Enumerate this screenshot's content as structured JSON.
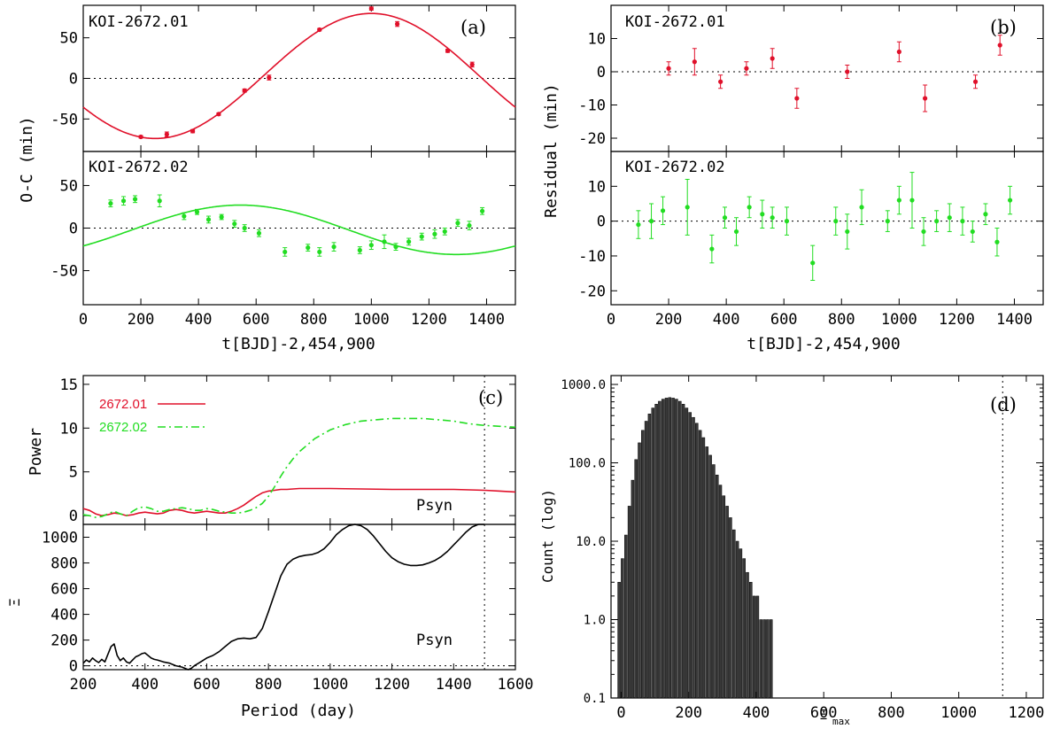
{
  "colors": {
    "red": "#e0102a",
    "green": "#22dd22",
    "black": "#000000"
  },
  "chart_data": [
    {
      "panel": "a",
      "type": "scatter",
      "letter": "(a)",
      "xlabel": "t[BJD]-2,454,900",
      "ylabel": "O-C (min)",
      "xlim": [
        0,
        1500
      ],
      "x_ticks": [
        0,
        200,
        400,
        600,
        800,
        1000,
        1200,
        1400
      ],
      "subpanels": [
        {
          "label": "KOI-2672.01",
          "color": "red",
          "ylim": [
            -90,
            90
          ],
          "y_ticks": [
            -50,
            0,
            50
          ],
          "points": [
            {
              "x": 200,
              "y": -72,
              "err": 1.5
            },
            {
              "x": 290,
              "y": -69,
              "err": 3
            },
            {
              "x": 380,
              "y": -65,
              "err": 2
            },
            {
              "x": 470,
              "y": -44,
              "err": 1.5
            },
            {
              "x": 560,
              "y": -15,
              "err": 2
            },
            {
              "x": 645,
              "y": 1,
              "err": 3
            },
            {
              "x": 820,
              "y": 60,
              "err": 1.5
            },
            {
              "x": 1000,
              "y": 86,
              "err": 2
            },
            {
              "x": 1090,
              "y": 67,
              "err": 3
            },
            {
              "x": 1265,
              "y": 34,
              "err": 2
            },
            {
              "x": 1350,
              "y": 17,
              "err": 3
            }
          ],
          "model": {
            "amplitude": 77,
            "period": 1500,
            "phase_zero_at": 625,
            "offset": 3
          }
        },
        {
          "label": "KOI-2672.02",
          "color": "green",
          "ylim": [
            -90,
            90
          ],
          "y_ticks": [
            -50,
            0,
            50
          ],
          "points": [
            {
              "x": 95,
              "y": 29,
              "err": 4
            },
            {
              "x": 140,
              "y": 32,
              "err": 5
            },
            {
              "x": 180,
              "y": 34,
              "err": 4
            },
            {
              "x": 265,
              "y": 32,
              "err": 7
            },
            {
              "x": 350,
              "y": 14,
              "err": 4
            },
            {
              "x": 395,
              "y": 19,
              "err": 3
            },
            {
              "x": 435,
              "y": 10,
              "err": 4
            },
            {
              "x": 480,
              "y": 13,
              "err": 3
            },
            {
              "x": 525,
              "y": 5,
              "err": 4
            },
            {
              "x": 560,
              "y": 0,
              "err": 4
            },
            {
              "x": 610,
              "y": -6,
              "err": 4
            },
            {
              "x": 700,
              "y": -28,
              "err": 5
            },
            {
              "x": 780,
              "y": -23,
              "err": 4
            },
            {
              "x": 820,
              "y": -28,
              "err": 5
            },
            {
              "x": 870,
              "y": -22,
              "err": 5
            },
            {
              "x": 960,
              "y": -26,
              "err": 4
            },
            {
              "x": 1000,
              "y": -20,
              "err": 5
            },
            {
              "x": 1045,
              "y": -16,
              "err": 8
            },
            {
              "x": 1085,
              "y": -22,
              "err": 4
            },
            {
              "x": 1130,
              "y": -16,
              "err": 4
            },
            {
              "x": 1175,
              "y": -10,
              "err": 4
            },
            {
              "x": 1220,
              "y": -7,
              "err": 5
            },
            {
              "x": 1255,
              "y": -4,
              "err": 4
            },
            {
              "x": 1300,
              "y": 6,
              "err": 4
            },
            {
              "x": 1340,
              "y": 3,
              "err": 5
            },
            {
              "x": 1385,
              "y": 20,
              "err": 4
            }
          ],
          "model": {
            "amplitude": 29,
            "period": 1500,
            "phase_zero_at": 170,
            "offset": -2
          }
        }
      ]
    },
    {
      "panel": "b",
      "type": "scatter",
      "letter": "(b)",
      "xlabel": "t[BJD]-2,454,900",
      "ylabel": "Residual (min)",
      "xlim": [
        0,
        1500
      ],
      "x_ticks": [
        0,
        200,
        400,
        600,
        800,
        1000,
        1200,
        1400
      ],
      "subpanels": [
        {
          "label": "KOI-2672.01",
          "color": "red",
          "ylim": [
            -24,
            20
          ],
          "y_ticks": [
            -20,
            -10,
            0,
            10
          ],
          "points": [
            {
              "x": 200,
              "y": 1,
              "err": 2
            },
            {
              "x": 290,
              "y": 3,
              "err": 4
            },
            {
              "x": 380,
              "y": -3,
              "err": 2
            },
            {
              "x": 470,
              "y": 1,
              "err": 2
            },
            {
              "x": 560,
              "y": 4,
              "err": 3
            },
            {
              "x": 645,
              "y": -8,
              "err": 3
            },
            {
              "x": 820,
              "y": 0,
              "err": 2
            },
            {
              "x": 1000,
              "y": 6,
              "err": 3
            },
            {
              "x": 1090,
              "y": -8,
              "err": 4
            },
            {
              "x": 1265,
              "y": -3,
              "err": 2
            },
            {
              "x": 1350,
              "y": 8,
              "err": 3
            }
          ]
        },
        {
          "label": "KOI-2672.02",
          "color": "green",
          "ylim": [
            -24,
            20
          ],
          "y_ticks": [
            -20,
            -10,
            0,
            10
          ],
          "points": [
            {
              "x": 95,
              "y": -1,
              "err": 4
            },
            {
              "x": 140,
              "y": 0,
              "err": 5
            },
            {
              "x": 180,
              "y": 3,
              "err": 4
            },
            {
              "x": 265,
              "y": 4,
              "err": 8
            },
            {
              "x": 350,
              "y": -8,
              "err": 4
            },
            {
              "x": 395,
              "y": 1,
              "err": 3
            },
            {
              "x": 435,
              "y": -3,
              "err": 4
            },
            {
              "x": 480,
              "y": 4,
              "err": 3
            },
            {
              "x": 525,
              "y": 2,
              "err": 4
            },
            {
              "x": 560,
              "y": 1,
              "err": 3
            },
            {
              "x": 610,
              "y": 0,
              "err": 4
            },
            {
              "x": 700,
              "y": -12,
              "err": 5
            },
            {
              "x": 780,
              "y": 0,
              "err": 4
            },
            {
              "x": 820,
              "y": -3,
              "err": 5
            },
            {
              "x": 870,
              "y": 4,
              "err": 5
            },
            {
              "x": 960,
              "y": 0,
              "err": 3
            },
            {
              "x": 1000,
              "y": 6,
              "err": 4
            },
            {
              "x": 1045,
              "y": 6,
              "err": 8
            },
            {
              "x": 1085,
              "y": -3,
              "err": 4
            },
            {
              "x": 1130,
              "y": 0,
              "err": 3
            },
            {
              "x": 1175,
              "y": 1,
              "err": 4
            },
            {
              "x": 1220,
              "y": 0,
              "err": 4
            },
            {
              "x": 1255,
              "y": -3,
              "err": 3
            },
            {
              "x": 1300,
              "y": 2,
              "err": 3
            },
            {
              "x": 1340,
              "y": -6,
              "err": 4
            },
            {
              "x": 1385,
              "y": 6,
              "err": 4
            }
          ]
        }
      ]
    },
    {
      "panel": "c",
      "type": "line",
      "letter": "(c)",
      "xlabel": "Period (day)",
      "xlim": [
        200,
        1600
      ],
      "x_ticks": [
        200,
        400,
        600,
        800,
        1000,
        1200,
        1400,
        1600
      ],
      "psyn_x": 1500,
      "psyn_label": "Psyn",
      "top": {
        "ylabel": "Power",
        "ylim": [
          -1,
          16
        ],
        "y_ticks": [
          0,
          5,
          10,
          15
        ],
        "legend": [
          {
            "label": "2672.01",
            "color": "red",
            "dash": "solid"
          },
          {
            "label": "2672.02",
            "color": "green",
            "dash": "dashdot"
          }
        ],
        "series": [
          {
            "name": "2672.01",
            "color": "red",
            "dash": "solid",
            "x": [
              200,
              220,
              240,
              260,
              280,
              300,
              320,
              340,
              360,
              380,
              400,
              420,
              440,
              460,
              480,
              500,
              520,
              540,
              560,
              580,
              600,
              620,
              640,
              660,
              680,
              700,
              720,
              740,
              760,
              780,
              800,
              820,
              840,
              860,
              880,
              900,
              950,
              1000,
              1100,
              1200,
              1300,
              1400,
              1450,
              1500,
              1550,
              1600
            ],
            "y": [
              0.8,
              0.6,
              0.2,
              0.0,
              0.1,
              0.3,
              0.2,
              0.0,
              0.1,
              0.3,
              0.4,
              0.3,
              0.2,
              0.3,
              0.6,
              0.7,
              0.6,
              0.4,
              0.3,
              0.4,
              0.5,
              0.4,
              0.3,
              0.3,
              0.5,
              0.8,
              1.2,
              1.7,
              2.2,
              2.6,
              2.8,
              2.9,
              3.0,
              3.0,
              3.05,
              3.1,
              3.1,
              3.1,
              3.05,
              3.0,
              3.0,
              3.0,
              2.95,
              2.9,
              2.8,
              2.7
            ]
          },
          {
            "name": "2672.02",
            "color": "green",
            "dash": "dashdot",
            "x": [
              200,
              220,
              240,
              260,
              280,
              300,
              320,
              340,
              360,
              380,
              400,
              420,
              440,
              460,
              480,
              500,
              520,
              540,
              560,
              580,
              600,
              620,
              640,
              660,
              680,
              700,
              720,
              740,
              760,
              780,
              800,
              820,
              840,
              860,
              880,
              900,
              950,
              1000,
              1050,
              1100,
              1200,
              1300,
              1400,
              1450,
              1500,
              1550,
              1600
            ],
            "y": [
              0.1,
              0.0,
              -0.2,
              -0.1,
              0.2,
              0.5,
              0.2,
              0.0,
              0.5,
              0.9,
              1.0,
              0.8,
              0.5,
              0.5,
              0.7,
              0.8,
              0.9,
              0.8,
              0.6,
              0.6,
              0.8,
              0.7,
              0.5,
              0.4,
              0.3,
              0.3,
              0.4,
              0.6,
              0.9,
              1.4,
              2.2,
              3.3,
              4.5,
              5.6,
              6.5,
              7.3,
              8.8,
              9.8,
              10.4,
              10.8,
              11.1,
              11.1,
              10.8,
              10.5,
              10.3,
              10.2,
              10.1
            ]
          }
        ]
      },
      "bottom": {
        "ylabel": "Ξ",
        "ylim": [
          -30,
          1100
        ],
        "y_ticks": [
          0,
          200,
          400,
          600,
          800,
          1000
        ],
        "series": [
          {
            "name": "Xi",
            "color": "black",
            "dash": "solid",
            "x": [
              200,
              210,
              220,
              230,
              240,
              250,
              260,
              270,
              280,
              290,
              300,
              310,
              320,
              330,
              340,
              350,
              360,
              370,
              380,
              390,
              400,
              410,
              420,
              430,
              440,
              460,
              480,
              500,
              520,
              540,
              550,
              560,
              580,
              600,
              620,
              640,
              660,
              680,
              700,
              720,
              740,
              760,
              780,
              800,
              820,
              840,
              860,
              880,
              900,
              920,
              940,
              960,
              980,
              1000,
              1020,
              1040,
              1060,
              1080,
              1100,
              1120,
              1140,
              1160,
              1180,
              1200,
              1220,
              1240,
              1260,
              1280,
              1300,
              1320,
              1340,
              1360,
              1380,
              1400,
              1420,
              1440,
              1460,
              1480,
              1500
            ],
            "y": [
              20,
              45,
              30,
              60,
              40,
              25,
              50,
              30,
              90,
              150,
              170,
              80,
              40,
              60,
              30,
              20,
              45,
              70,
              80,
              95,
              100,
              80,
              60,
              50,
              45,
              30,
              20,
              0,
              -10,
              -30,
              -20,
              0,
              30,
              60,
              80,
              110,
              150,
              190,
              210,
              215,
              210,
              220,
              290,
              420,
              560,
              700,
              790,
              830,
              850,
              860,
              865,
              880,
              910,
              960,
              1020,
              1060,
              1090,
              1100,
              1090,
              1060,
              1010,
              950,
              890,
              840,
              810,
              790,
              780,
              780,
              785,
              800,
              820,
              850,
              890,
              940,
              990,
              1040,
              1080,
              1100,
              1100
            ]
          }
        ]
      }
    },
    {
      "panel": "d",
      "type": "bar",
      "letter": "(d)",
      "xlabel": "Ξ",
      "xlabel_sub": "max",
      "ylabel": "Count (log)",
      "xlim": [
        -30,
        1250
      ],
      "x_ticks": [
        0,
        200,
        400,
        600,
        800,
        1000,
        1200
      ],
      "ylim_log": [
        0.1,
        1000
      ],
      "y_ticks": [
        0.1,
        1.0,
        10.0,
        100.0,
        1000.0
      ],
      "y_tick_labels": [
        "0.1",
        "1.0",
        "10.0",
        "100.0",
        "1000.0"
      ],
      "vline_x": 1130,
      "bin_width": 10,
      "bin_start": -10,
      "counts": [
        3,
        6,
        12,
        28,
        60,
        110,
        180,
        260,
        340,
        420,
        500,
        560,
        610,
        650,
        670,
        680,
        670,
        650,
        610,
        560,
        500,
        440,
        380,
        320,
        260,
        210,
        160,
        125,
        95,
        70,
        52,
        38,
        28,
        20,
        14,
        10,
        8,
        6,
        4,
        3,
        2,
        2,
        1,
        1,
        1,
        1
      ]
    }
  ]
}
